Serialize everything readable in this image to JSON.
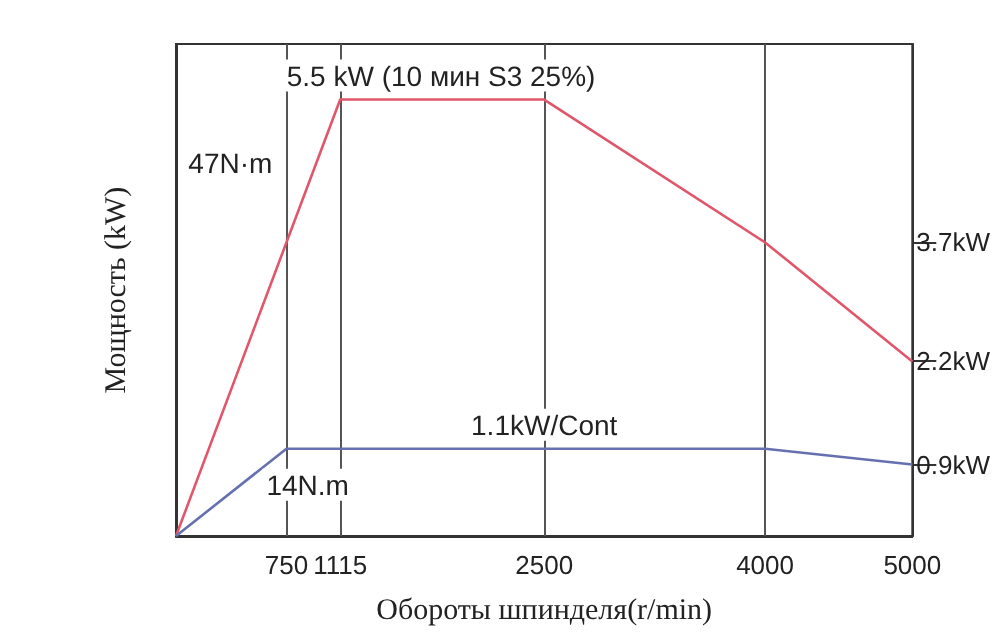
{
  "chart_data": {
    "type": "line",
    "xlabel": "Обороты шпинделя(r/min)",
    "ylabel": "Мощность (kW)",
    "xlim": [
      0,
      5000
    ],
    "xticks": [
      750,
      1115,
      2500,
      4000,
      5000
    ],
    "ylim": [
      0,
      6.2
    ],
    "yticks": [
      {
        "value": 3.7,
        "label": "3.7kW"
      },
      {
        "value": 2.2,
        "label": "2.2kW"
      },
      {
        "value": 0.9,
        "label": "0.9kW"
      }
    ],
    "grid": "x",
    "marker": "none",
    "line_style": "solid",
    "series": [
      {
        "color": "#e0566a",
        "x": [
          0,
          1115,
          2500,
          4000,
          5000
        ],
        "values": [
          0,
          5.5,
          5.5,
          3.7,
          2.2
        ]
      },
      {
        "color": "#6670b0",
        "x": [
          0,
          750,
          4000,
          5000
        ],
        "values": [
          0,
          1.1,
          1.1,
          0.9
        ]
      }
    ],
    "annotations": [
      {
        "text": "5.5 kW (10 мин S3 25%)",
        "x": 1800,
        "y": 5.5
      },
      {
        "text": "47N·m",
        "x": 953,
        "y": 4.7
      },
      {
        "text": "1.1kW/Cont",
        "x": 2500,
        "y": 1.1
      },
      {
        "text": "14N.m",
        "x": 750,
        "y": 1.1
      }
    ]
  }
}
